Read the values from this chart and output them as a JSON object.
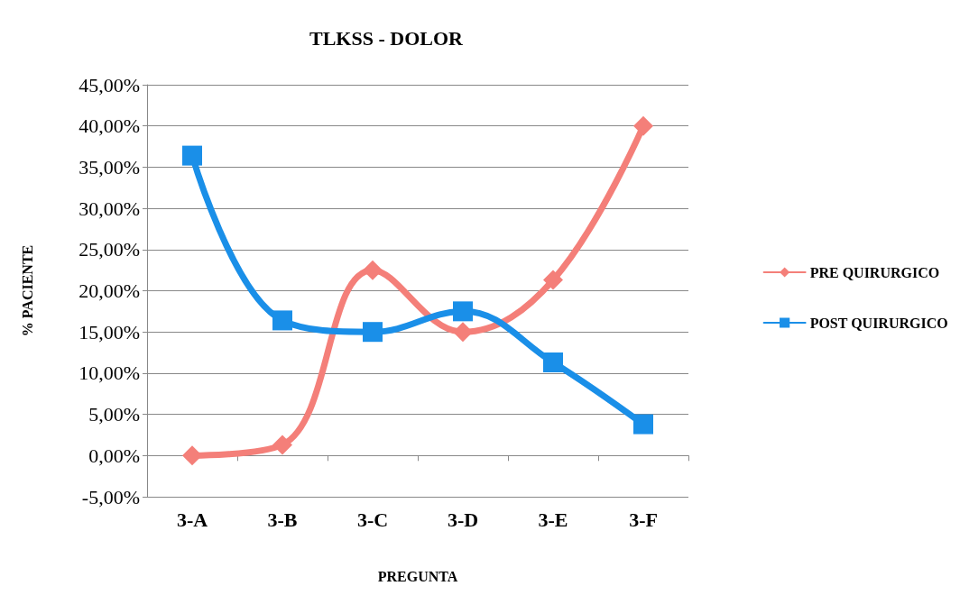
{
  "chart_data": {
    "type": "line",
    "title": "TLKSS - DOLOR",
    "xlabel": "PREGUNTA",
    "ylabel": "% PACIENTE",
    "categories": [
      "3-A",
      "3-B",
      "3-C",
      "3-D",
      "3-E",
      "3-F"
    ],
    "series": [
      {
        "name": "PRE QUIRURGICO",
        "color": "#f47f79",
        "marker": "diamond",
        "values": [
          0,
          1.3,
          22.5,
          15,
          21.3,
          40
        ]
      },
      {
        "name": "POST QUIRURGICO",
        "color": "#1a8fe8",
        "marker": "square",
        "values": [
          36.4,
          16.4,
          15,
          17.5,
          11.3,
          3.8
        ]
      }
    ],
    "ylim": [
      -5,
      45
    ],
    "yticks": [
      {
        "value": -5,
        "label": "-5,00%"
      },
      {
        "value": 0,
        "label": "0,00%"
      },
      {
        "value": 5,
        "label": "5,00%"
      },
      {
        "value": 10,
        "label": "10,00%"
      },
      {
        "value": 15,
        "label": "15,00%"
      },
      {
        "value": 20,
        "label": "20,00%"
      },
      {
        "value": 25,
        "label": "25,00%"
      },
      {
        "value": 30,
        "label": "30,00%"
      },
      {
        "value": 35,
        "label": "35,00%"
      },
      {
        "value": 40,
        "label": "40,00%"
      },
      {
        "value": 45,
        "label": "45,00%"
      }
    ],
    "grid": "y",
    "legend": "right",
    "line_style": "solid"
  }
}
